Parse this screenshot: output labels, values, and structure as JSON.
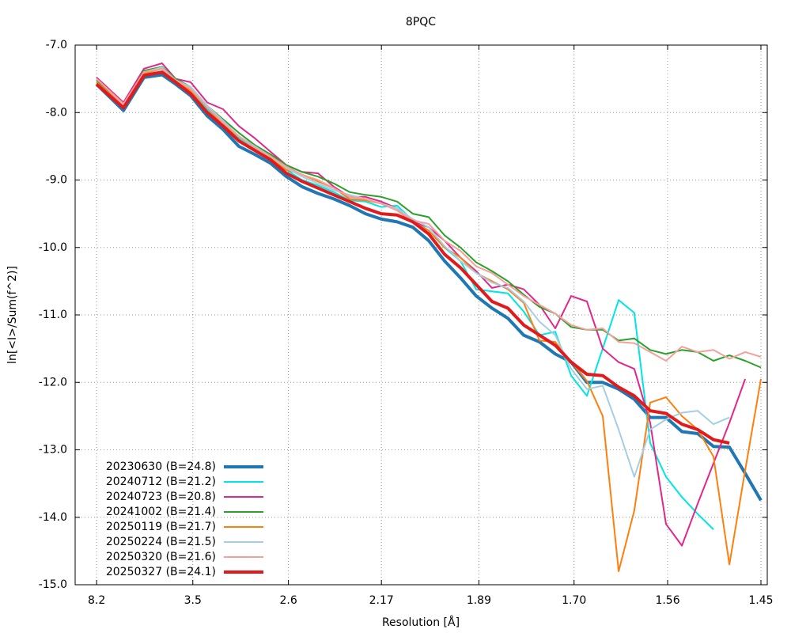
{
  "chart_data": {
    "type": "line",
    "title": "8PQC",
    "xlabel": "Resolution [Å]",
    "ylabel": "ln[<I>/Sum(f^2)]",
    "xlim": [
      0,
      0.48
    ],
    "ylim": [
      -15,
      -7
    ],
    "grid": true,
    "legend": "lower left",
    "xticks": [
      {
        "value": 0.0149,
        "label": "8.2"
      },
      {
        "value": 0.0816,
        "label": "3.5"
      },
      {
        "value": 0.1479,
        "label": "2.6"
      },
      {
        "value": 0.2124,
        "label": "2.17"
      },
      {
        "value": 0.28,
        "label": "1.89"
      },
      {
        "value": 0.346,
        "label": "1.70"
      },
      {
        "value": 0.4109,
        "label": "1.56"
      },
      {
        "value": 0.4756,
        "label": "1.45"
      }
    ],
    "yticks": [
      {
        "value": -7,
        "label": "-7.0"
      },
      {
        "value": -8,
        "label": "-8.0"
      },
      {
        "value": -9,
        "label": "-9.0"
      },
      {
        "value": -10,
        "label": "-10.0"
      },
      {
        "value": -11,
        "label": "-11.0"
      },
      {
        "value": -12,
        "label": "-12.0"
      },
      {
        "value": -13,
        "label": "-13.0"
      },
      {
        "value": -14,
        "label": "-14.0"
      },
      {
        "value": -15,
        "label": "-15.0"
      }
    ],
    "x": [
      0.0148,
      0.0335,
      0.0477,
      0.0603,
      0.0697,
      0.0801,
      0.0916,
      0.1026,
      0.1135,
      0.1245,
      0.1355,
      0.1465,
      0.1574,
      0.1684,
      0.1794,
      0.1904,
      0.2013,
      0.2123,
      0.2233,
      0.2342,
      0.2452,
      0.2562,
      0.2672,
      0.2781,
      0.2891,
      0.3001,
      0.3111,
      0.322,
      0.333,
      0.344,
      0.3549,
      0.3659,
      0.3769,
      0.3878,
      0.3988,
      0.4098,
      0.4208,
      0.4317,
      0.4427,
      0.4537,
      0.4647,
      0.4756
    ],
    "series": [
      {
        "name": "20230630 (B=24.8)",
        "color": "#1f77b4",
        "line_width": 4,
        "values": [
          -7.58,
          -7.97,
          -7.48,
          -7.44,
          -7.58,
          -7.75,
          -8.05,
          -8.25,
          -8.5,
          -8.62,
          -8.75,
          -8.95,
          -9.1,
          -9.2,
          -9.28,
          -9.38,
          -9.5,
          -9.58,
          -9.62,
          -9.7,
          -9.9,
          -10.2,
          -10.45,
          -10.72,
          -10.9,
          -11.05,
          -11.3,
          -11.4,
          -11.58,
          -11.7,
          -12.0,
          -12.0,
          -12.1,
          -12.25,
          -12.52,
          -12.52,
          -12.73,
          -12.76,
          -12.95,
          -12.96,
          -13.35,
          -13.75
        ]
      },
      {
        "name": "20240712 (B=21.2)",
        "color": "#00e5e5",
        "line_width": 2,
        "values": [
          -7.52,
          -7.9,
          -7.42,
          -7.35,
          -7.52,
          -7.65,
          -7.95,
          -8.15,
          -8.38,
          -8.55,
          -8.7,
          -8.85,
          -9.0,
          -9.08,
          -9.18,
          -9.3,
          -9.32,
          -9.4,
          -9.38,
          -9.6,
          -9.75,
          -10.0,
          -10.2,
          -10.62,
          -10.65,
          -10.68,
          -10.95,
          -11.3,
          -11.25,
          -11.9,
          -12.2,
          -11.5,
          -10.78,
          -10.97,
          -12.9,
          -13.4,
          -13.7,
          -13.95,
          -14.18,
          null,
          null,
          null
        ]
      },
      {
        "name": "20240723 (B=20.8)",
        "color": "#e0288a",
        "line_width": 2,
        "values": [
          -7.48,
          -7.85,
          -7.35,
          -7.27,
          -7.5,
          -7.55,
          -7.85,
          -7.95,
          -8.2,
          -8.38,
          -8.58,
          -8.78,
          -8.88,
          -8.9,
          -9.1,
          -9.25,
          -9.25,
          -9.32,
          -9.42,
          -9.62,
          -9.7,
          -9.9,
          -10.15,
          -10.35,
          -10.6,
          -10.55,
          -10.62,
          -10.85,
          -11.2,
          -10.72,
          -10.8,
          -11.5,
          -11.7,
          -11.8,
          -12.6,
          -14.1,
          -14.42,
          -13.8,
          -13.2,
          -12.6,
          -11.95,
          null
        ]
      },
      {
        "name": "20241002 (B=21.4)",
        "color": "#2ca02c",
        "line_width": 2,
        "values": [
          -7.52,
          -7.9,
          -7.38,
          -7.32,
          -7.5,
          -7.62,
          -7.9,
          -8.1,
          -8.3,
          -8.48,
          -8.62,
          -8.78,
          -8.88,
          -8.95,
          -9.05,
          -9.18,
          -9.22,
          -9.25,
          -9.32,
          -9.5,
          -9.55,
          -9.82,
          -10.0,
          -10.22,
          -10.35,
          -10.5,
          -10.7,
          -10.88,
          -10.98,
          -11.18,
          -11.22,
          -11.22,
          -11.38,
          -11.35,
          -11.52,
          -11.58,
          -11.52,
          -11.55,
          -11.68,
          -11.6,
          -11.68,
          -11.78
        ]
      },
      {
        "name": "20250119 (B=21.7)",
        "color": "#ff7f0e",
        "line_width": 2,
        "values": [
          -7.55,
          -7.9,
          -7.42,
          -7.35,
          -7.52,
          -7.68,
          -7.98,
          -8.15,
          -8.4,
          -8.55,
          -8.68,
          -8.85,
          -8.92,
          -9.02,
          -9.12,
          -9.28,
          -9.3,
          -9.35,
          -9.45,
          -9.62,
          -9.75,
          -10.0,
          -10.15,
          -10.38,
          -10.5,
          -10.62,
          -10.82,
          -11.38,
          -11.4,
          -11.7,
          -11.98,
          -12.5,
          -14.8,
          -13.9,
          -12.3,
          -12.22,
          -12.5,
          -12.7,
          -13.1,
          -14.7,
          -13.3,
          -11.95
        ]
      },
      {
        "name": "20250224 (B=21.5)",
        "color": "#a6cee3",
        "line_width": 2,
        "values": [
          -7.5,
          -7.88,
          -7.4,
          -7.33,
          -7.52,
          -7.62,
          -7.9,
          -8.12,
          -8.35,
          -8.5,
          -8.65,
          -8.82,
          -8.95,
          -9.05,
          -9.15,
          -9.22,
          -9.28,
          -9.35,
          -9.42,
          -9.58,
          -9.7,
          -9.98,
          -10.2,
          -10.38,
          -10.52,
          -10.6,
          -10.8,
          -11.1,
          -11.3,
          -11.8,
          -12.1,
          -12.05,
          -12.7,
          -13.4,
          -12.7,
          -12.55,
          -12.45,
          -12.42,
          -12.62,
          -12.52,
          null,
          null
        ]
      },
      {
        "name": "20250320 (B=21.6)",
        "color": "#f4a09c",
        "line_width": 2,
        "values": [
          -7.5,
          -7.87,
          -7.4,
          -7.35,
          -7.52,
          -7.65,
          -7.92,
          -8.15,
          -8.35,
          -8.52,
          -8.65,
          -8.8,
          -8.92,
          -9.0,
          -9.12,
          -9.25,
          -9.28,
          -9.35,
          -9.45,
          -9.6,
          -9.65,
          -9.9,
          -10.05,
          -10.28,
          -10.38,
          -10.55,
          -10.72,
          -10.85,
          -10.98,
          -11.15,
          -11.22,
          -11.2,
          -11.4,
          -11.42,
          -11.55,
          -11.68,
          -11.47,
          -11.55,
          -11.52,
          -11.65,
          -11.55,
          -11.62
        ]
      },
      {
        "name": "20250327 (B=24.1)",
        "color": "#e31a1c",
        "line_width": 4,
        "values": [
          -7.58,
          -7.93,
          -7.45,
          -7.4,
          -7.55,
          -7.72,
          -8.0,
          -8.2,
          -8.42,
          -8.56,
          -8.7,
          -8.9,
          -9.02,
          -9.12,
          -9.22,
          -9.32,
          -9.42,
          -9.5,
          -9.52,
          -9.62,
          -9.8,
          -10.1,
          -10.3,
          -10.55,
          -10.8,
          -10.9,
          -11.15,
          -11.3,
          -11.45,
          -11.7,
          -11.88,
          -11.9,
          -12.07,
          -12.2,
          -12.42,
          -12.46,
          -12.62,
          -12.7,
          -12.85,
          -12.9,
          null,
          null
        ]
      }
    ]
  }
}
